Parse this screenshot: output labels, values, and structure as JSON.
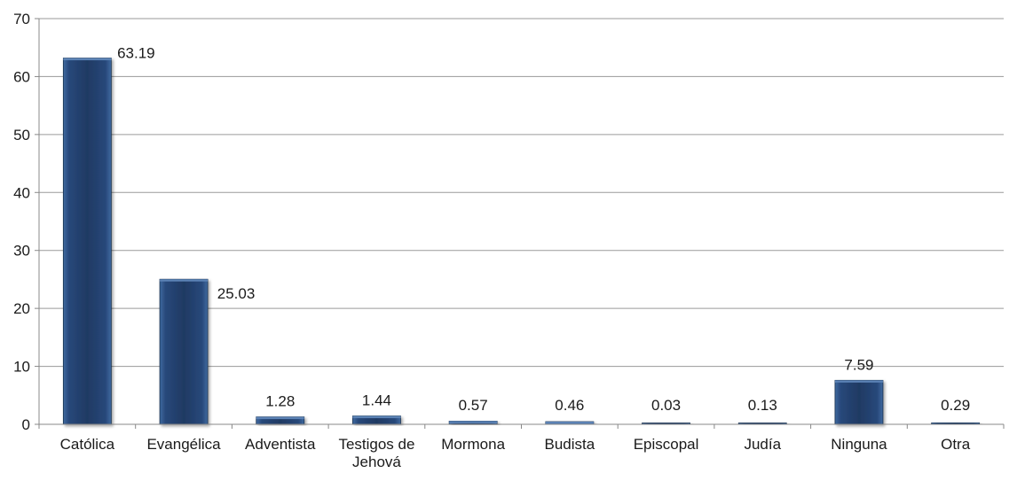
{
  "chart_data": {
    "type": "bar",
    "categories": [
      "Católica",
      "Evangélica",
      "Adventista",
      "Testigos de Jehová",
      "Mormona",
      "Budista",
      "Episcopal",
      "Judía",
      "Ninguna",
      "Otra"
    ],
    "values": [
      63.19,
      25.03,
      1.28,
      1.44,
      0.57,
      0.46,
      0.03,
      0.13,
      7.59,
      0.29
    ],
    "data_labels": [
      "63.19",
      "25.03",
      "1.28",
      "1.44",
      "0.57",
      "0.46",
      "0.03",
      "0.13",
      "7.59",
      "0.29"
    ],
    "ylim": [
      0,
      70
    ],
    "yticks": [
      "0",
      "10",
      "20",
      "30",
      "40",
      "50",
      "60",
      "70"
    ],
    "title": "",
    "xlabel": "",
    "ylabel": "",
    "grid": true,
    "bar_color": "#1f3a63",
    "bar_highlight": "#3f6aa0"
  }
}
